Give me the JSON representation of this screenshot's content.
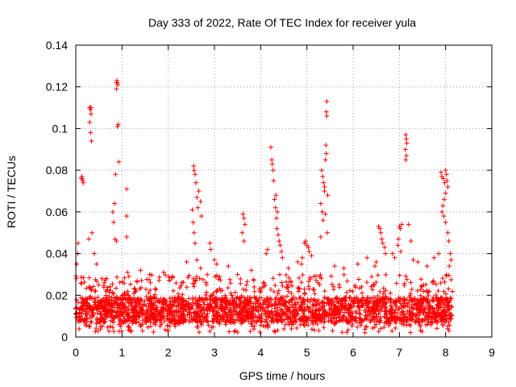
{
  "chart_data": {
    "type": "scatter",
    "title": "Day 333 of 2022, Rate Of TEC Index for receiver yula",
    "xlabel": "GPS time / hours",
    "ylabel": "ROTI / TECUs",
    "xlim": [
      0,
      9
    ],
    "ylim": [
      0,
      0.14
    ],
    "xticks": [
      0,
      1,
      2,
      3,
      4,
      5,
      6,
      7,
      8,
      9
    ],
    "xtick_labels": [
      "0",
      "1",
      "2",
      "3",
      "4",
      "5",
      "6",
      "7",
      "8",
      "9"
    ],
    "yticks": [
      0,
      0.02,
      0.04,
      0.06,
      0.08,
      0.1,
      0.12,
      0.14
    ],
    "ytick_labels": [
      "0",
      "0.02",
      "0.04",
      "0.06",
      "0.08",
      "0.1",
      "0.12",
      "0.14"
    ],
    "grid": true,
    "marker": "+",
    "color": "#ff0000",
    "data_extent_hours": [
      0,
      8.15
    ],
    "baseline_band": [
      0.005,
      0.03
    ],
    "series": [
      {
        "name": "ROTI",
        "points": [
          [
            0.13,
            0.077
          ],
          [
            0.14,
            0.076
          ],
          [
            0.15,
            0.075
          ],
          [
            0.16,
            0.074
          ],
          [
            0.12,
            0.076
          ],
          [
            0.3,
            0.11
          ],
          [
            0.31,
            0.11
          ],
          [
            0.32,
            0.109
          ],
          [
            0.33,
            0.11
          ],
          [
            0.3,
            0.103
          ],
          [
            0.32,
            0.098
          ],
          [
            0.34,
            0.094
          ],
          [
            0.33,
            0.107
          ],
          [
            0.88,
            0.122
          ],
          [
            0.89,
            0.123
          ],
          [
            0.9,
            0.122
          ],
          [
            0.91,
            0.121
          ],
          [
            0.88,
            0.119
          ],
          [
            0.92,
            0.102
          ],
          [
            0.9,
            0.101
          ],
          [
            0.93,
            0.084
          ],
          [
            0.86,
            0.078
          ],
          [
            0.84,
            0.064
          ],
          [
            0.8,
            0.06
          ],
          [
            0.82,
            0.055
          ],
          [
            0.85,
            0.047
          ],
          [
            0.88,
            0.046
          ],
          [
            1.1,
            0.071
          ],
          [
            1.1,
            0.058
          ],
          [
            1.1,
            0.048
          ],
          [
            1.12,
            0.031
          ],
          [
            2.55,
            0.082
          ],
          [
            2.56,
            0.08
          ],
          [
            2.58,
            0.078
          ],
          [
            2.6,
            0.074
          ],
          [
            2.62,
            0.067
          ],
          [
            2.64,
            0.062
          ],
          [
            2.66,
            0.07
          ],
          [
            2.7,
            0.065
          ],
          [
            2.72,
            0.058
          ],
          [
            2.52,
            0.061
          ],
          [
            2.54,
            0.055
          ],
          [
            2.56,
            0.05
          ],
          [
            2.58,
            0.045
          ],
          [
            2.62,
            0.037
          ],
          [
            2.7,
            0.033
          ],
          [
            2.68,
            0.028
          ],
          [
            2.9,
            0.045
          ],
          [
            2.92,
            0.042
          ],
          [
            3.0,
            0.037
          ],
          [
            3.05,
            0.035
          ],
          [
            3.62,
            0.059
          ],
          [
            3.64,
            0.057
          ],
          [
            3.66,
            0.054
          ],
          [
            3.6,
            0.05
          ],
          [
            3.64,
            0.046
          ],
          [
            4.22,
            0.091
          ],
          [
            4.24,
            0.085
          ],
          [
            4.25,
            0.083
          ],
          [
            4.27,
            0.08
          ],
          [
            4.28,
            0.075
          ],
          [
            4.3,
            0.066
          ],
          [
            4.32,
            0.062
          ],
          [
            4.34,
            0.057
          ],
          [
            4.35,
            0.052
          ],
          [
            4.38,
            0.049
          ],
          [
            4.4,
            0.046
          ],
          [
            4.42,
            0.044
          ],
          [
            4.45,
            0.041
          ],
          [
            4.47,
            0.038
          ],
          [
            4.33,
            0.068
          ],
          [
            4.36,
            0.06
          ],
          [
            4.15,
            0.042
          ],
          [
            4.12,
            0.04
          ],
          [
            4.95,
            0.045
          ],
          [
            4.97,
            0.046
          ],
          [
            5.0,
            0.044
          ],
          [
            5.03,
            0.043
          ],
          [
            5.05,
            0.041
          ],
          [
            4.9,
            0.038
          ],
          [
            4.88,
            0.035
          ],
          [
            5.1,
            0.039
          ],
          [
            5.32,
            0.08
          ],
          [
            5.34,
            0.077
          ],
          [
            5.36,
            0.074
          ],
          [
            5.38,
            0.07
          ],
          [
            5.3,
            0.064
          ],
          [
            5.33,
            0.06
          ],
          [
            5.35,
            0.056
          ],
          [
            5.43,
            0.113
          ],
          [
            5.42,
            0.108
          ],
          [
            5.43,
            0.106
          ],
          [
            5.41,
            0.092
          ],
          [
            5.42,
            0.088
          ],
          [
            5.4,
            0.085
          ],
          [
            5.38,
            0.072
          ],
          [
            5.45,
            0.068
          ],
          [
            5.4,
            0.059
          ],
          [
            5.44,
            0.05
          ],
          [
            5.3,
            0.048
          ],
          [
            6.55,
            0.053
          ],
          [
            6.58,
            0.052
          ],
          [
            6.6,
            0.05
          ],
          [
            6.62,
            0.047
          ],
          [
            6.64,
            0.045
          ],
          [
            6.68,
            0.043
          ],
          [
            6.7,
            0.04
          ],
          [
            6.5,
            0.036
          ],
          [
            6.47,
            0.034
          ],
          [
            7.0,
            0.053
          ],
          [
            7.02,
            0.052
          ],
          [
            7.05,
            0.054
          ],
          [
            6.98,
            0.047
          ],
          [
            6.97,
            0.044
          ],
          [
            7.03,
            0.041
          ],
          [
            7.14,
            0.097
          ],
          [
            7.15,
            0.095
          ],
          [
            7.16,
            0.093
          ],
          [
            7.13,
            0.09
          ],
          [
            7.15,
            0.087
          ],
          [
            7.14,
            0.085
          ],
          [
            7.2,
            0.054
          ],
          [
            7.25,
            0.046
          ],
          [
            7.3,
            0.037
          ],
          [
            7.9,
            0.079
          ],
          [
            7.92,
            0.077
          ],
          [
            7.95,
            0.076
          ],
          [
            7.98,
            0.074
          ],
          [
            8.0,
            0.08
          ],
          [
            8.02,
            0.078
          ],
          [
            8.03,
            0.075
          ],
          [
            8.05,
            0.072
          ],
          [
            8.0,
            0.069
          ],
          [
            7.97,
            0.066
          ],
          [
            7.94,
            0.063
          ],
          [
            7.92,
            0.06
          ],
          [
            7.96,
            0.058
          ],
          [
            8.0,
            0.055
          ],
          [
            8.05,
            0.05
          ],
          [
            8.07,
            0.046
          ],
          [
            8.1,
            0.04
          ],
          [
            8.12,
            0.037
          ],
          [
            8.08,
            0.034
          ],
          [
            0.05,
            0.045
          ],
          [
            0.04,
            0.04
          ],
          [
            0.02,
            0.035
          ],
          [
            0.28,
            0.047
          ],
          [
            0.35,
            0.05
          ],
          [
            0.4,
            0.04
          ],
          [
            0.45,
            0.035
          ],
          [
            1.4,
            0.032
          ],
          [
            1.6,
            0.03
          ],
          [
            1.9,
            0.031
          ],
          [
            2.1,
            0.029
          ],
          [
            2.4,
            0.036
          ],
          [
            3.3,
            0.034
          ],
          [
            3.5,
            0.03
          ],
          [
            3.8,
            0.032
          ],
          [
            4.6,
            0.033
          ],
          [
            4.8,
            0.036
          ],
          [
            5.6,
            0.034
          ],
          [
            5.8,
            0.033
          ],
          [
            6.1,
            0.035
          ],
          [
            6.3,
            0.038
          ],
          [
            6.85,
            0.04
          ],
          [
            6.9,
            0.038
          ],
          [
            7.4,
            0.036
          ],
          [
            7.6,
            0.034
          ],
          [
            7.75,
            0.038
          ],
          [
            7.85,
            0.04
          ]
        ]
      }
    ]
  }
}
